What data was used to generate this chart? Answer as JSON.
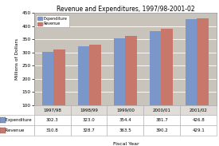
{
  "title": "Revenue and Expenditures, 1997/98-2001-02",
  "categories": [
    "1997/98",
    "1998/99",
    "1999/00",
    "2000/01",
    "2001/02"
  ],
  "expenditure": [
    302.3,
    323.0,
    354.4,
    381.7,
    426.8
  ],
  "revenue": [
    310.8,
    328.7,
    363.5,
    390.2,
    429.1
  ],
  "bar_color_exp": "#7b96c8",
  "bar_color_rev": "#c8786a",
  "ylabel": "Millions of Dollars",
  "xlabel": "Fiscal Year",
  "ylim": [
    100,
    450
  ],
  "yticks": [
    100,
    150,
    200,
    250,
    300,
    350,
    400,
    450
  ],
  "plot_bg": "#c8c4bc",
  "legend_labels": [
    "Expenditure",
    "Revenue"
  ],
  "table_row_labels": [
    "Expenditure",
    "Revenue"
  ],
  "exp_display": [
    "302.3",
    "323.0",
    "354.4",
    "381.7",
    "426.8"
  ],
  "rev_display": [
    "310.8",
    "328.7",
    "363.5",
    "390.2",
    "429.1"
  ]
}
